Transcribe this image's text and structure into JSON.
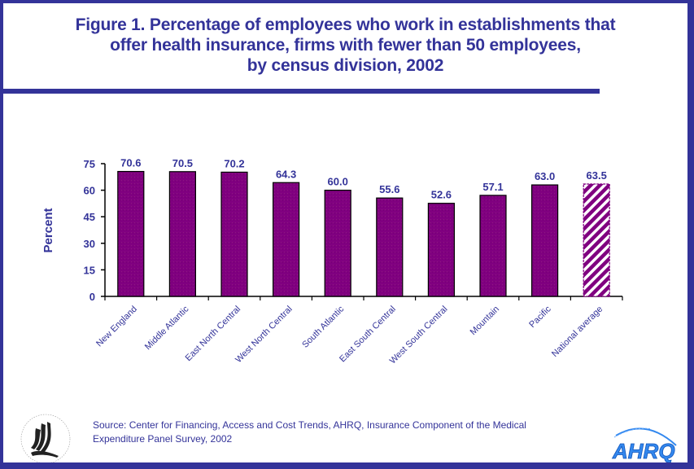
{
  "title": "Figure 1. Percentage of employees who work in establishments that offer health insurance, firms with fewer than 50 employees, by census division, 2002",
  "title_lines": [
    "Figure 1. Percentage of employees who work in establishments that",
    "offer health insurance, firms with fewer than 50 employees,",
    "by census division, 2002"
  ],
  "source_lines": [
    "Source: Center for Financing, Access and Cost Trends, AHRQ, Insurance Component of the Medical",
    "Expenditure Panel Survey, 2002"
  ],
  "logos": {
    "left": "hhs-eagle-seal",
    "right": "AHRQ"
  },
  "colors": {
    "frame": "#333399",
    "bar": "#800080",
    "text": "#333399"
  },
  "chart_data": {
    "type": "bar",
    "title": "Figure 1. Percentage of employees who work in establishments that offer health insurance, firms with fewer than 50 employees, by census division, 2002",
    "xlabel": "",
    "ylabel": "Percent",
    "ylim": [
      0,
      75
    ],
    "yticks": [
      0,
      15,
      30,
      45,
      60,
      75
    ],
    "grid": false,
    "legend": "none",
    "categories": [
      "New England",
      "Middle Atlantic",
      "East North Central",
      "West North Central",
      "South Atlantic",
      "East South Central",
      "West South Central",
      "Mountain",
      "Pacific",
      "National average"
    ],
    "values": [
      70.6,
      70.5,
      70.2,
      64.3,
      60.0,
      55.6,
      52.6,
      57.1,
      63.0,
      63.5
    ],
    "value_labels": [
      "70.6",
      "70.5",
      "70.2",
      "64.3",
      "60.0",
      "55.6",
      "52.6",
      "57.1",
      "63.0",
      "63.5"
    ],
    "highlight": {
      "category": "National average",
      "pattern": "diagonal-stripes"
    }
  }
}
